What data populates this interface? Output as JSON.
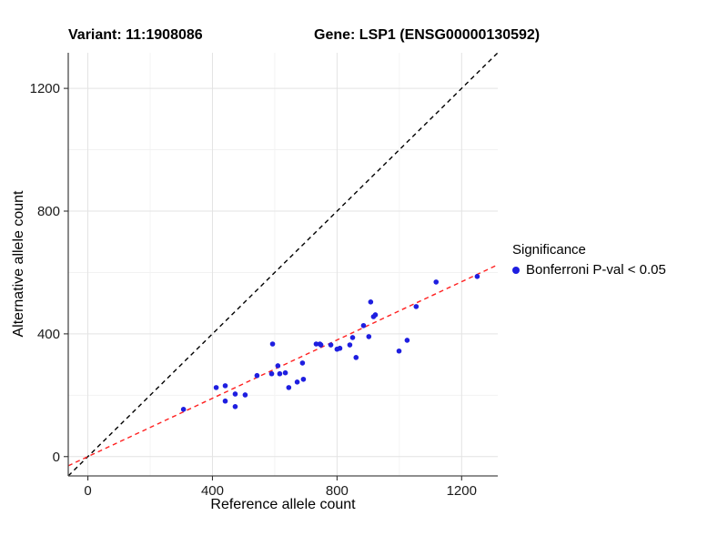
{
  "header": {
    "variant_title": "Variant: 11:1908086",
    "gene_title": "Gene: LSP1 (ENSG00000130592)"
  },
  "chart_data": {
    "type": "scatter",
    "xlabel": "Reference allele count",
    "ylabel": "Alternative allele count",
    "xlim": [
      -63,
      1316
    ],
    "ylim": [
      -63,
      1316
    ],
    "x_ticks": [
      0,
      400,
      800,
      1200
    ],
    "y_ticks": [
      0,
      400,
      800,
      1200
    ],
    "x_minor_ticks": [
      200,
      600,
      1000
    ],
    "y_minor_ticks": [
      200,
      600,
      1000
    ],
    "grid": "major+minor",
    "colors": {
      "point": "#1E1EE0",
      "identity_line": "#000000",
      "fit_line": "#FF2020",
      "grid_major": "#E3E3E3",
      "grid_minor": "#F1F1F1",
      "axis": "#4a4a4a",
      "tick_label": "#1a1a1a"
    },
    "series": [
      {
        "name": "Bonferroni P-val < 0.05",
        "points": [
          [
            307,
            154
          ],
          [
            412,
            225
          ],
          [
            441,
            231
          ],
          [
            441,
            181
          ],
          [
            473,
            204
          ],
          [
            473,
            163
          ],
          [
            505,
            201
          ],
          [
            543,
            264
          ],
          [
            590,
            270
          ],
          [
            593,
            367
          ],
          [
            610,
            296
          ],
          [
            616,
            270
          ],
          [
            634,
            273
          ],
          [
            645,
            225
          ],
          [
            672,
            243
          ],
          [
            689,
            305
          ],
          [
            692,
            252
          ],
          [
            733,
            367
          ],
          [
            745,
            367
          ],
          [
            748,
            364
          ],
          [
            780,
            364
          ],
          [
            800,
            350
          ],
          [
            809,
            353
          ],
          [
            841,
            364
          ],
          [
            850,
            388
          ],
          [
            861,
            323
          ],
          [
            885,
            427
          ],
          [
            902,
            391
          ],
          [
            908,
            504
          ],
          [
            917,
            456
          ],
          [
            923,
            462
          ],
          [
            999,
            344
          ],
          [
            1025,
            379
          ],
          [
            1054,
            489
          ],
          [
            1118,
            569
          ],
          [
            1250,
            587
          ]
        ]
      }
    ],
    "reference_lines": [
      {
        "name": "identity-line",
        "slope": 1,
        "intercept": 0,
        "color": "#000000",
        "style": "dashed"
      },
      {
        "name": "fitted-ratio-line",
        "slope": 0.475,
        "intercept": 0,
        "color": "#FF2020",
        "style": "dashed"
      }
    ],
    "legend": {
      "title": "Significance",
      "position": "right",
      "items": [
        {
          "label": "Bonferroni P-val < 0.05",
          "color": "#1E1EE0"
        }
      ]
    }
  }
}
